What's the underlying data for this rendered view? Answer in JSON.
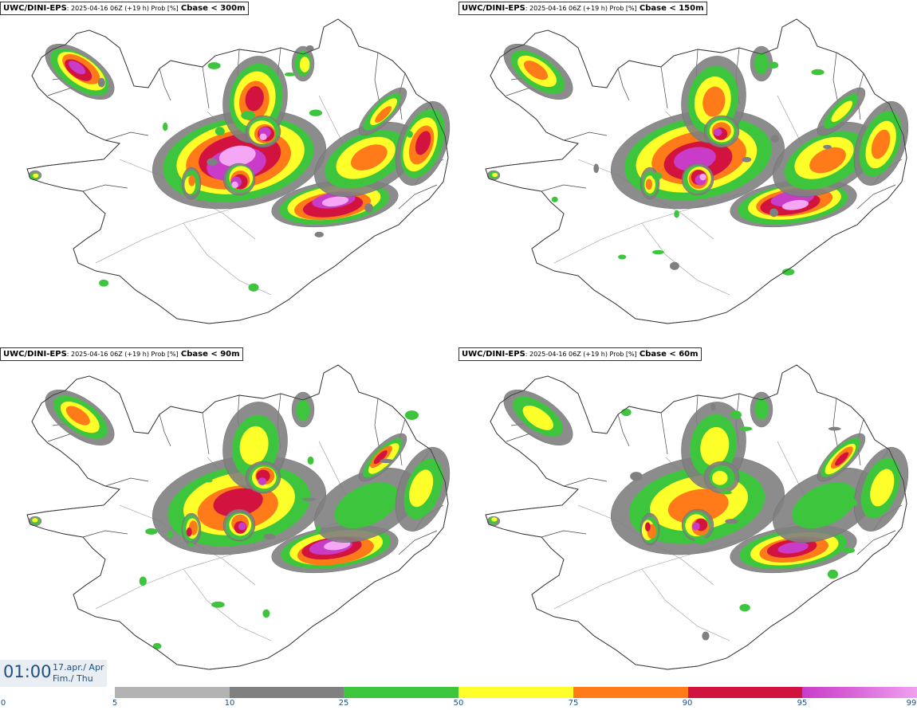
{
  "panels": [
    {
      "model": "UWC/DINI-EPS",
      "meta": ": 2025-04-16 06Z (+19 h) Prob [%]",
      "param": "Cbase < 300m"
    },
    {
      "model": "UWC/DINI-EPS",
      "meta": ": 2025-04-16 06Z (+19 h) Prob [%]",
      "param": "Cbase < 150m"
    },
    {
      "model": "UWC/DINI-EPS",
      "meta": ": 2025-04-16 06Z (+19 h) Prob [%]",
      "param": "Cbase < 90m"
    },
    {
      "model": "UWC/DINI-EPS",
      "meta": ": 2025-04-16 06Z (+19 h) Prob [%]",
      "param": "Cbase < 60m"
    }
  ],
  "valid_time": {
    "time": "01:00",
    "date_line1": "17.apr./ Apr",
    "date_line2": "Fim./ Thu"
  },
  "legend": {
    "ticks": [
      "0",
      "5",
      "10",
      "25",
      "50",
      "75",
      "90",
      "95",
      "99"
    ],
    "classes": [
      {
        "from": 5,
        "to": 10,
        "color": "#b3b3b3"
      },
      {
        "from": 10,
        "to": 25,
        "color": "#808080"
      },
      {
        "from": 25,
        "to": 50,
        "color": "#3dc63d"
      },
      {
        "from": 50,
        "to": 75,
        "color": "#ffff2a"
      },
      {
        "from": 75,
        "to": 90,
        "color": "#ff7a18"
      },
      {
        "from": 90,
        "to": 95,
        "color": "#d2123f"
      },
      {
        "from": 95,
        "to": 99,
        "color": "#c83cc8"
      },
      {
        "from": 99,
        "to": 100,
        "color": "#f5a7f5"
      }
    ]
  },
  "colors": {
    "coast": "#333333",
    "boundary": "#888888",
    "time_text": "#1d4f80"
  }
}
